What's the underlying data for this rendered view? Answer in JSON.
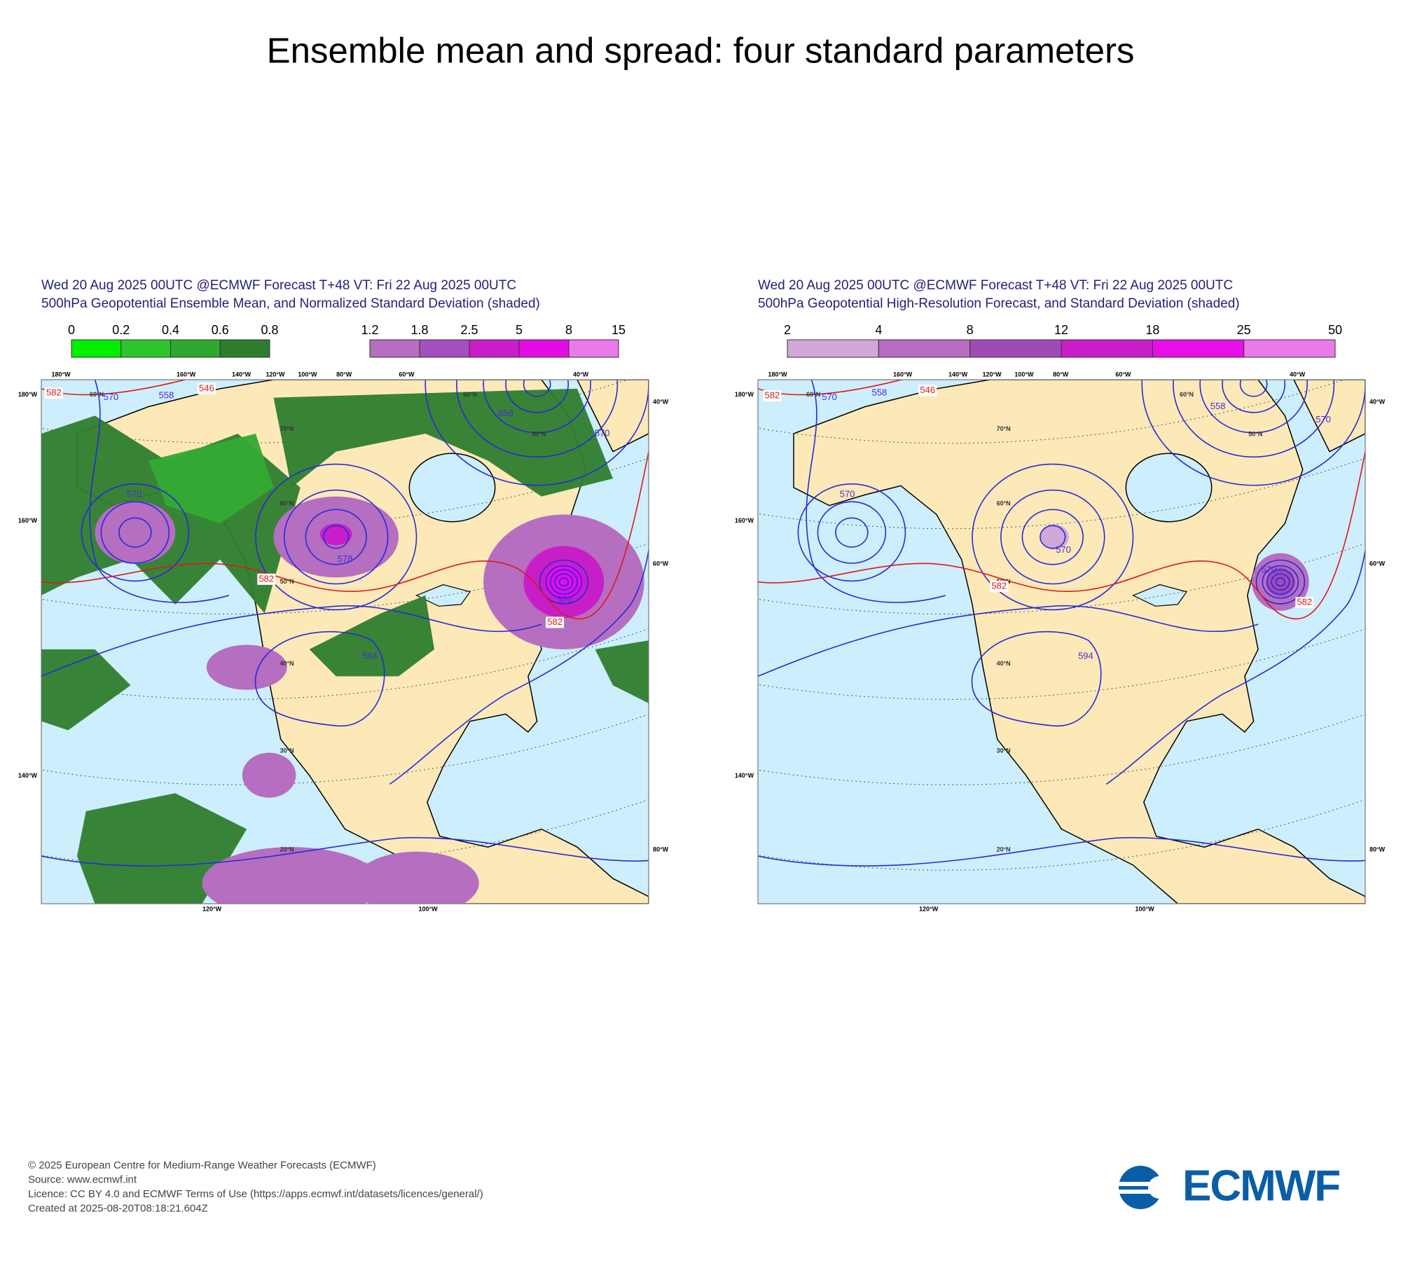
{
  "header": {
    "title": "Ensemble mean and spread: four standard parameters"
  },
  "panels": [
    {
      "subtitle_lines": [
        "Wed 20 Aug 2025 00UTC @ECMWF Forecast T+48 VT: Fri 22 Aug 2025 00UTC",
        "500hPa Geopotential Ensemble Mean, and Normalized Standard Deviation (shaded)"
      ],
      "colorbars": [
        {
          "ticks": [
            0,
            0.2,
            0.4,
            0.6,
            0.8
          ]
        },
        {
          "ticks": [
            1.2,
            1.8,
            2.5,
            5,
            8,
            15
          ]
        }
      ],
      "map": {
        "top_labels": [
          "180°W",
          "160°W",
          "140°W",
          "120°W",
          "100°W",
          "80°W",
          "60°W",
          "40°W"
        ],
        "left_labels": [
          "180°W",
          "160°W",
          "140°W"
        ],
        "right_labels": [
          "40°W",
          "60°W",
          "80°W"
        ],
        "bottom_labels": [
          "120°W",
          "100°W"
        ],
        "lat_labels": [
          "60°N",
          "60°N",
          "50°N",
          "70°N",
          "60°N",
          "50°N",
          "40°N",
          "30°N",
          "20°N"
        ],
        "contour_labels": [
          582,
          570,
          558,
          546,
          558,
          570,
          570,
          578,
          582,
          594,
          570,
          582
        ]
      }
    },
    {
      "subtitle_lines": [
        "Wed 20 Aug 2025 00UTC @ECMWF Forecast T+48 VT: Fri 22 Aug 2025 00UTC",
        "500hPa Geopotential High-Resolution Forecast, and Standard Deviation (shaded)"
      ],
      "colorbars": [
        {
          "ticks": [
            2,
            4,
            8,
            12,
            18,
            25,
            50
          ]
        }
      ],
      "map": {
        "top_labels": [
          "180°W",
          "160°W",
          "140°W",
          "120°W",
          "100°W",
          "80°W",
          "60°W",
          "40°W"
        ],
        "left_labels": [
          "180°W",
          "160°W",
          "140°W"
        ],
        "right_labels": [
          "40°W",
          "60°W",
          "80°W"
        ],
        "bottom_labels": [
          "120°W",
          "100°W"
        ],
        "lat_labels": [
          "60°N",
          "60°N",
          "50°N",
          "70°N",
          "60°N",
          "50°N",
          "40°N",
          "30°N",
          "20°N"
        ],
        "contour_labels": [
          582,
          570,
          558,
          546,
          558,
          570,
          570,
          570,
          582,
          594,
          570,
          582
        ]
      }
    }
  ],
  "footer": {
    "lines": [
      "© 2025 European Centre for Medium-Range Weather Forecasts (ECMWF)",
      "Source: www.ecmwf.int",
      "Licence: CC BY 4.0 and ECMWF Terms of Use (https://apps.ecmwf.int/datasets/licences/general/)",
      "Created at 2025-08-20T08:18:21.604Z"
    ],
    "logo": "ECMWF"
  }
}
